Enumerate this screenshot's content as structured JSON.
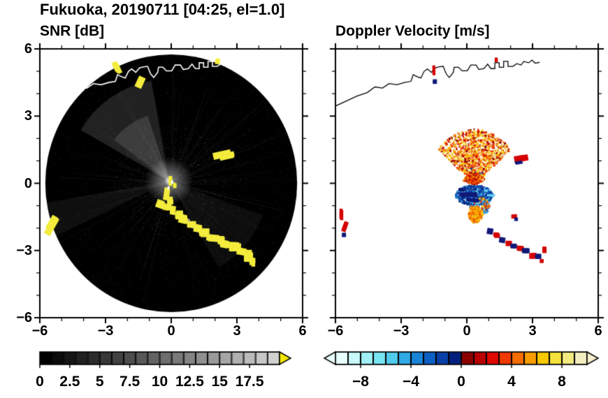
{
  "figure": {
    "title": "Fukuoka, 20190711 [04:25, el=1.0]",
    "background": "#ffffff",
    "text_color": "#000000"
  },
  "panels": [
    {
      "key": "snr",
      "title": "SNR [dB]"
    },
    {
      "key": "velocity",
      "title": "Doppler Velocity [m/s]"
    }
  ],
  "axes": {
    "xlim": [
      -6,
      6
    ],
    "ylim": [
      -6,
      6
    ],
    "major_tick_step": 3,
    "minor_tick_step": 1,
    "x_tick_values": [
      -6,
      -3,
      0,
      3,
      6
    ],
    "x_tick_labels": [
      "−6",
      "−3",
      "0",
      "3",
      "6"
    ],
    "y_tick_values": [
      6,
      3,
      0,
      -3,
      -6
    ],
    "y_tick_labels": [
      "6",
      "3",
      "0",
      "−3",
      "−6"
    ]
  },
  "colorbars": [
    {
      "for": "snr",
      "orientation": "horizontal",
      "range": [
        0,
        20
      ],
      "n_segments": 20,
      "colors": [
        "#000000",
        "#0b0b0b",
        "#161616",
        "#212121",
        "#2c2c2c",
        "#373737",
        "#424242",
        "#4d4d4d",
        "#585858",
        "#636363",
        "#6e6e6e",
        "#797979",
        "#848484",
        "#8f8f8f",
        "#9a9a9a",
        "#a5a5a5",
        "#b0b0b0",
        "#bbbbbb",
        "#c6c6c6",
        "#d1d1d1"
      ],
      "under_arrow_color": null,
      "over_arrow_color": "#f5e800",
      "tick_values": [
        0,
        2.5,
        5,
        7.5,
        10,
        12.5,
        15,
        17.5
      ],
      "tick_labels": [
        "0",
        "2.5",
        "5",
        "7.5",
        "10",
        "12.5",
        "15",
        "17.5"
      ]
    },
    {
      "for": "velocity",
      "orientation": "horizontal",
      "range": [
        -10,
        10
      ],
      "n_segments": 20,
      "colors": [
        "#e8ffff",
        "#c8f8fa",
        "#a0f0f5",
        "#78e4f2",
        "#50ccee",
        "#30aae6",
        "#1884d8",
        "#0c60c4",
        "#0840a8",
        "#04207e",
        "#8c0000",
        "#b80000",
        "#e00800",
        "#f03800",
        "#f56c00",
        "#f89c00",
        "#fac800",
        "#f5e23c",
        "#f3ea80",
        "#f2eec0"
      ],
      "under_arrow_color": "#eaffff",
      "over_arrow_color": "#f6f0cc",
      "tick_values": [
        -8,
        -4,
        0,
        4,
        8
      ],
      "tick_labels": [
        "−8",
        "−4",
        "0",
        "4",
        "8"
      ]
    }
  ],
  "coastline": {
    "color_left_panel": "#ffffff",
    "color_right_panel": "#000000",
    "points": [
      [
        -6.0,
        3.45
      ],
      [
        -5.45,
        3.7
      ],
      [
        -5.0,
        3.9
      ],
      [
        -4.55,
        4.05
      ],
      [
        -4.2,
        4.3
      ],
      [
        -3.85,
        4.25
      ],
      [
        -3.55,
        4.45
      ],
      [
        -3.2,
        4.4
      ],
      [
        -2.85,
        4.5
      ],
      [
        -2.55,
        4.55
      ],
      [
        -2.45,
        4.85
      ],
      [
        -2.25,
        4.75
      ],
      [
        -2.1,
        4.7
      ],
      [
        -1.95,
        5.0
      ],
      [
        -1.8,
        5.1
      ],
      [
        -1.62,
        4.95
      ],
      [
        -1.45,
        5.15
      ],
      [
        -1.25,
        5.2
      ],
      [
        -1.08,
        5.22
      ],
      [
        -0.95,
        4.9
      ],
      [
        -0.8,
        4.72
      ],
      [
        -0.62,
        4.95
      ],
      [
        -0.58,
        5.18
      ],
      [
        -0.38,
        5.18
      ],
      [
        -0.22,
        5.02
      ],
      [
        0.02,
        5.02
      ],
      [
        0.18,
        5.28
      ],
      [
        0.42,
        5.28
      ],
      [
        0.55,
        5.08
      ],
      [
        0.78,
        5.12
      ],
      [
        0.95,
        5.32
      ],
      [
        1.1,
        5.12
      ],
      [
        1.28,
        5.12
      ],
      [
        1.28,
        5.38
      ],
      [
        1.48,
        5.38
      ],
      [
        1.48,
        5.18
      ],
      [
        1.68,
        5.18
      ],
      [
        1.68,
        5.44
      ],
      [
        1.88,
        5.44
      ],
      [
        1.88,
        5.22
      ],
      [
        2.1,
        5.22
      ],
      [
        2.28,
        5.34
      ],
      [
        2.48,
        5.28
      ],
      [
        2.6,
        5.44
      ],
      [
        2.82,
        5.38
      ],
      [
        2.98,
        5.5
      ],
      [
        3.12,
        5.36
      ],
      [
        3.32,
        5.4
      ]
    ]
  },
  "chart_data": [
    {
      "type": "heatmap",
      "title": "SNR [dB]",
      "units": "dB",
      "xlim": [
        -6,
        6
      ],
      "ylim": [
        -6,
        6
      ],
      "colorbar_range": [
        0,
        20
      ],
      "scan_disk": {
        "center": [
          0,
          0
        ],
        "radius": 5.75,
        "low_snr_color": "#000000"
      },
      "bright_sectors": [
        [
          100,
          150,
          4.6,
          0.13
        ],
        [
          108,
          143,
          3.1,
          0.12
        ],
        [
          190,
          206,
          5.7,
          0.06
        ],
        [
          300,
          340,
          4.5,
          0.05
        ]
      ],
      "sector_center": [
        -0.1,
        0.1
      ],
      "noise": {
        "speckle_count": 3600,
        "bright_speckle_count": 500,
        "streak_count": 150
      },
      "echo_color": "#f3ec3c",
      "echoes": [
        [
          -2.45,
          5.15,
          0.22,
          0.5,
          -25
        ],
        [
          -1.4,
          4.6,
          0.28,
          0.45,
          25
        ],
        [
          2.1,
          5.45,
          0.18,
          0.18,
          0
        ],
        [
          2.5,
          1.25,
          0.7,
          0.28,
          -12
        ],
        [
          -0.05,
          0.12,
          0.16,
          0.28,
          0
        ],
        [
          0.16,
          -0.08,
          0.12,
          0.18,
          0
        ],
        [
          -0.2,
          -0.45,
          0.2,
          0.5,
          8
        ],
        [
          0.0,
          -0.78,
          0.24,
          0.3,
          0
        ],
        [
          -0.5,
          -0.95,
          0.3,
          0.33,
          20
        ],
        [
          -0.16,
          -1.08,
          0.3,
          0.25,
          0
        ],
        [
          0.1,
          -1.2,
          0.25,
          0.3,
          10
        ],
        [
          0.36,
          -1.4,
          0.3,
          0.3,
          0
        ],
        [
          0.6,
          -1.6,
          0.34,
          0.3,
          15
        ],
        [
          0.9,
          -1.8,
          0.3,
          0.25,
          0
        ],
        [
          1.2,
          -2.0,
          0.34,
          0.3,
          10
        ],
        [
          1.5,
          -2.2,
          0.4,
          0.3,
          0
        ],
        [
          1.85,
          -2.4,
          0.45,
          0.34,
          5
        ],
        [
          2.2,
          -2.55,
          0.35,
          0.3,
          0
        ],
        [
          2.5,
          -2.7,
          0.4,
          0.3,
          10
        ],
        [
          2.85,
          -2.9,
          0.45,
          0.35,
          0
        ],
        [
          3.2,
          -3.08,
          0.4,
          0.35,
          10
        ],
        [
          3.5,
          -3.3,
          0.34,
          0.4,
          0
        ],
        [
          3.72,
          -3.52,
          0.24,
          0.3,
          0
        ],
        [
          -5.45,
          -1.8,
          0.28,
          0.75,
          30
        ]
      ],
      "gray_echo_color": "#9a9a9a",
      "gray_echoes": [
        [
          1.05,
          -1.92,
          0.3,
          0.2,
          0
        ],
        [
          1.38,
          -2.12,
          0.25,
          0.18,
          0
        ],
        [
          2.35,
          -2.64,
          0.2,
          0.14,
          0
        ],
        [
          0.75,
          -1.7,
          0.2,
          0.15,
          0
        ]
      ],
      "white_specks": [
        [
          0.05,
          0.05,
          0.1,
          0.1,
          0
        ],
        [
          -0.12,
          -0.22,
          0.08,
          0.12,
          0
        ]
      ]
    },
    {
      "type": "heatmap",
      "title": "Doppler Velocity [m/s]",
      "units": "m/s",
      "xlim": [
        -6,
        6
      ],
      "ylim": [
        -6,
        6
      ],
      "colorbar_range": [
        -10,
        10
      ],
      "fan": {
        "origin": [
          0.3,
          -0.05
        ],
        "angle_deg": [
          40,
          140
        ],
        "radius_max": 2.5,
        "count": 1500,
        "core_count": 320
      },
      "warm_palette": [
        "#8c0000",
        "#c00000",
        "#e81800",
        "#f04800",
        "#f57c00",
        "#f8a800",
        "#fac800",
        "#f3e23c",
        "#f6eea0"
      ],
      "cool_palette": [
        "#04207e",
        "#0840a8",
        "#0c60c4",
        "#1884d8",
        "#30aae6",
        "#78e4f2"
      ],
      "warm2_palette": [
        "#f57c00",
        "#f8a800",
        "#e85000",
        "#fac800"
      ],
      "clusters": [
        {
          "name": "cool-core",
          "center": [
            0.3,
            -0.5
          ],
          "rx": 0.85,
          "ry": 0.45,
          "count": 650,
          "palette": "cool"
        },
        {
          "name": "mixed-tail",
          "center": [
            0.55,
            -1.0
          ],
          "rx": 0.45,
          "ry": 0.4,
          "count": 200,
          "palette": "mixed"
        },
        {
          "name": "warm-blob",
          "center": [
            0.35,
            -1.35
          ],
          "rx": 0.32,
          "ry": 0.38,
          "count": 220,
          "palette": "warm2"
        }
      ],
      "feature_colors": {
        "red": "#d40000",
        "navy": "#101878",
        "orange": "#f07800",
        "amber": "#f0a000",
        "yellow": "#f0d000",
        "cyan": "#60c8f0"
      },
      "features": [
        [
          -5.72,
          -1.45,
          0.16,
          0.5,
          0,
          "red"
        ],
        [
          -5.55,
          -2.0,
          0.22,
          0.45,
          20,
          "red"
        ],
        [
          -5.62,
          -2.28,
          0.2,
          0.2,
          0,
          "navy"
        ],
        [
          -1.5,
          5.0,
          0.14,
          0.45,
          0,
          "red"
        ],
        [
          -1.45,
          4.55,
          0.18,
          0.22,
          0,
          "navy"
        ],
        [
          1.35,
          5.5,
          0.15,
          0.18,
          0,
          "red"
        ],
        [
          2.5,
          1.1,
          0.55,
          0.3,
          -10,
          "red"
        ],
        [
          2.42,
          0.93,
          0.35,
          0.12,
          -10,
          "navy"
        ],
        [
          0.15,
          -0.5,
          0.85,
          0.2,
          0,
          "navy"
        ],
        [
          0.35,
          -0.75,
          0.6,
          0.16,
          5,
          "navy"
        ],
        [
          -0.2,
          -0.3,
          0.3,
          0.15,
          0,
          "navy"
        ],
        [
          1.1,
          -0.55,
          0.3,
          0.12,
          0,
          "cyan"
        ],
        [
          0.9,
          -0.33,
          0.2,
          0.1,
          0,
          "cyan"
        ],
        [
          2.15,
          -1.45,
          0.22,
          0.2,
          0,
          "red"
        ],
        [
          2.28,
          -1.6,
          0.18,
          0.15,
          0,
          "navy"
        ],
        [
          1.1,
          -2.15,
          0.3,
          0.25,
          10,
          "navy"
        ],
        [
          1.35,
          -2.3,
          0.28,
          0.22,
          0,
          "red"
        ],
        [
          1.6,
          -2.5,
          0.3,
          0.25,
          10,
          "navy"
        ],
        [
          1.9,
          -2.65,
          0.3,
          0.25,
          0,
          "red"
        ],
        [
          2.15,
          -2.78,
          0.3,
          0.22,
          0,
          "navy"
        ],
        [
          2.45,
          -2.92,
          0.3,
          0.25,
          5,
          "red"
        ],
        [
          2.7,
          -3.05,
          0.3,
          0.25,
          0,
          "navy"
        ],
        [
          3.0,
          -3.2,
          0.3,
          0.28,
          0,
          "red"
        ],
        [
          3.25,
          -3.3,
          0.25,
          0.25,
          0,
          "navy"
        ],
        [
          3.55,
          -3.0,
          0.2,
          0.3,
          0,
          "red"
        ],
        [
          3.42,
          -3.45,
          0.18,
          0.18,
          0,
          "red"
        ]
      ]
    }
  ]
}
